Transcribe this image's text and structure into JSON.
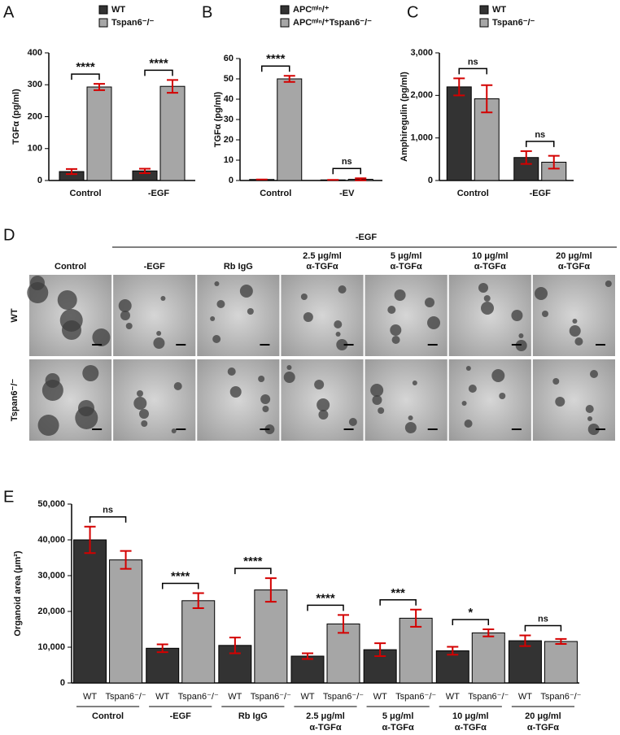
{
  "panels": [
    "A",
    "B",
    "C",
    "D",
    "E"
  ],
  "image_grid": {
    "top_label": "-EGF",
    "columns": [
      [
        "Control"
      ],
      [
        "-EGF"
      ],
      [
        "Rb IgG"
      ],
      [
        "2.5 μg/ml",
        "α-TGFα"
      ],
      [
        "5 μg/ml",
        "α-TGFα"
      ],
      [
        "10 μg/ml",
        "α-TGFα"
      ],
      [
        "20 μg/ml",
        "α-TGFα"
      ]
    ],
    "rows": [
      "WT",
      "Tspan6⁻/⁻"
    ]
  },
  "chart_data": [
    {
      "type": "bar",
      "y_label": "TGFα (pg/ml)",
      "categories": [
        "Control",
        "-EGF"
      ],
      "series": [
        {
          "name": "WT",
          "color": "#333333",
          "values": [
            28,
            30
          ],
          "errors": [
            8,
            7
          ]
        },
        {
          "name": "Tspan6⁻/⁻",
          "color": "#a6a6a6",
          "values": [
            293,
            295
          ],
          "errors": [
            10,
            20
          ]
        }
      ],
      "annotations": [
        "****",
        "****"
      ],
      "ylim": [
        0,
        400
      ],
      "yticks": [
        0,
        100,
        200,
        300,
        400
      ],
      "error_color": "#d40000"
    },
    {
      "type": "bar",
      "y_label": "TGFα (pg/ml)",
      "categories": [
        "Control",
        "-EV"
      ],
      "series": [
        {
          "name": "APCᵐⁱⁿ/⁺",
          "color": "#333333",
          "values": [
            0.5,
            0.3
          ],
          "errors": [
            0,
            0
          ]
        },
        {
          "name": "APCᵐⁱⁿ/⁺Tspan6⁻/⁻",
          "color": "#a6a6a6",
          "values": [
            50,
            0.6
          ],
          "errors": [
            1.5,
            0.5
          ]
        }
      ],
      "annotations": [
        "****",
        "ns"
      ],
      "ylim": [
        0,
        60
      ],
      "yticks": [
        0,
        10,
        20,
        30,
        40,
        50,
        60
      ],
      "error_color": "#d40000"
    },
    {
      "type": "bar",
      "y_label": "Amphiregulin (pg/ml)",
      "categories": [
        "Control",
        "-EGF"
      ],
      "series": [
        {
          "name": "WT",
          "color": "#333333",
          "values": [
            2200,
            540
          ],
          "errors": [
            200,
            150
          ]
        },
        {
          "name": "Tspan6⁻/⁻",
          "color": "#a6a6a6",
          "values": [
            1920,
            430
          ],
          "errors": [
            320,
            150
          ]
        }
      ],
      "annotations": [
        "ns",
        "ns"
      ],
      "ylim": [
        0,
        3000
      ],
      "yticks": [
        0,
        {
          "value": 1000,
          "label": "1,000"
        },
        {
          "value": 2000,
          "label": "2,000"
        },
        {
          "value": 3000,
          "label": "3,000"
        }
      ],
      "error_color": "#d40000"
    },
    {
      "type": "bar",
      "y_label": "Organoid area (μm²)",
      "categories": [
        [
          "Control"
        ],
        [
          "-EGF"
        ],
        [
          "Rb IgG"
        ],
        [
          "2.5 μg/ml",
          "α-TGFα"
        ],
        [
          "5 μg/ml",
          "α-TGFα"
        ],
        [
          "10 μg/ml",
          "α-TGFα"
        ],
        [
          "20 μg/ml",
          "α-TGFα"
        ]
      ],
      "series": [
        {
          "name": "WT",
          "color": "#333333",
          "values": [
            40000,
            9700,
            10500,
            7500,
            9300,
            9000,
            11800
          ],
          "errors": [
            3700,
            1100,
            2200,
            800,
            1800,
            1100,
            1500
          ]
        },
        {
          "name": "Tspan6⁻/⁻",
          "color": "#a6a6a6",
          "values": [
            34400,
            23000,
            26000,
            16500,
            18100,
            14000,
            11600
          ],
          "errors": [
            2500,
            2100,
            3300,
            2500,
            2400,
            1000,
            700
          ]
        }
      ],
      "annotations": [
        "ns",
        "****",
        "****",
        "****",
        "***",
        "*",
        "ns"
      ],
      "ylim": [
        0,
        50000
      ],
      "yticks": [
        0,
        {
          "value": 10000,
          "label": "10,000"
        },
        {
          "value": 20000,
          "label": "20,000"
        },
        {
          "value": 30000,
          "label": "30,000"
        },
        {
          "value": 40000,
          "label": "40,000"
        },
        {
          "value": 50000,
          "label": "50,000"
        }
      ],
      "error_color": "#d40000"
    }
  ]
}
